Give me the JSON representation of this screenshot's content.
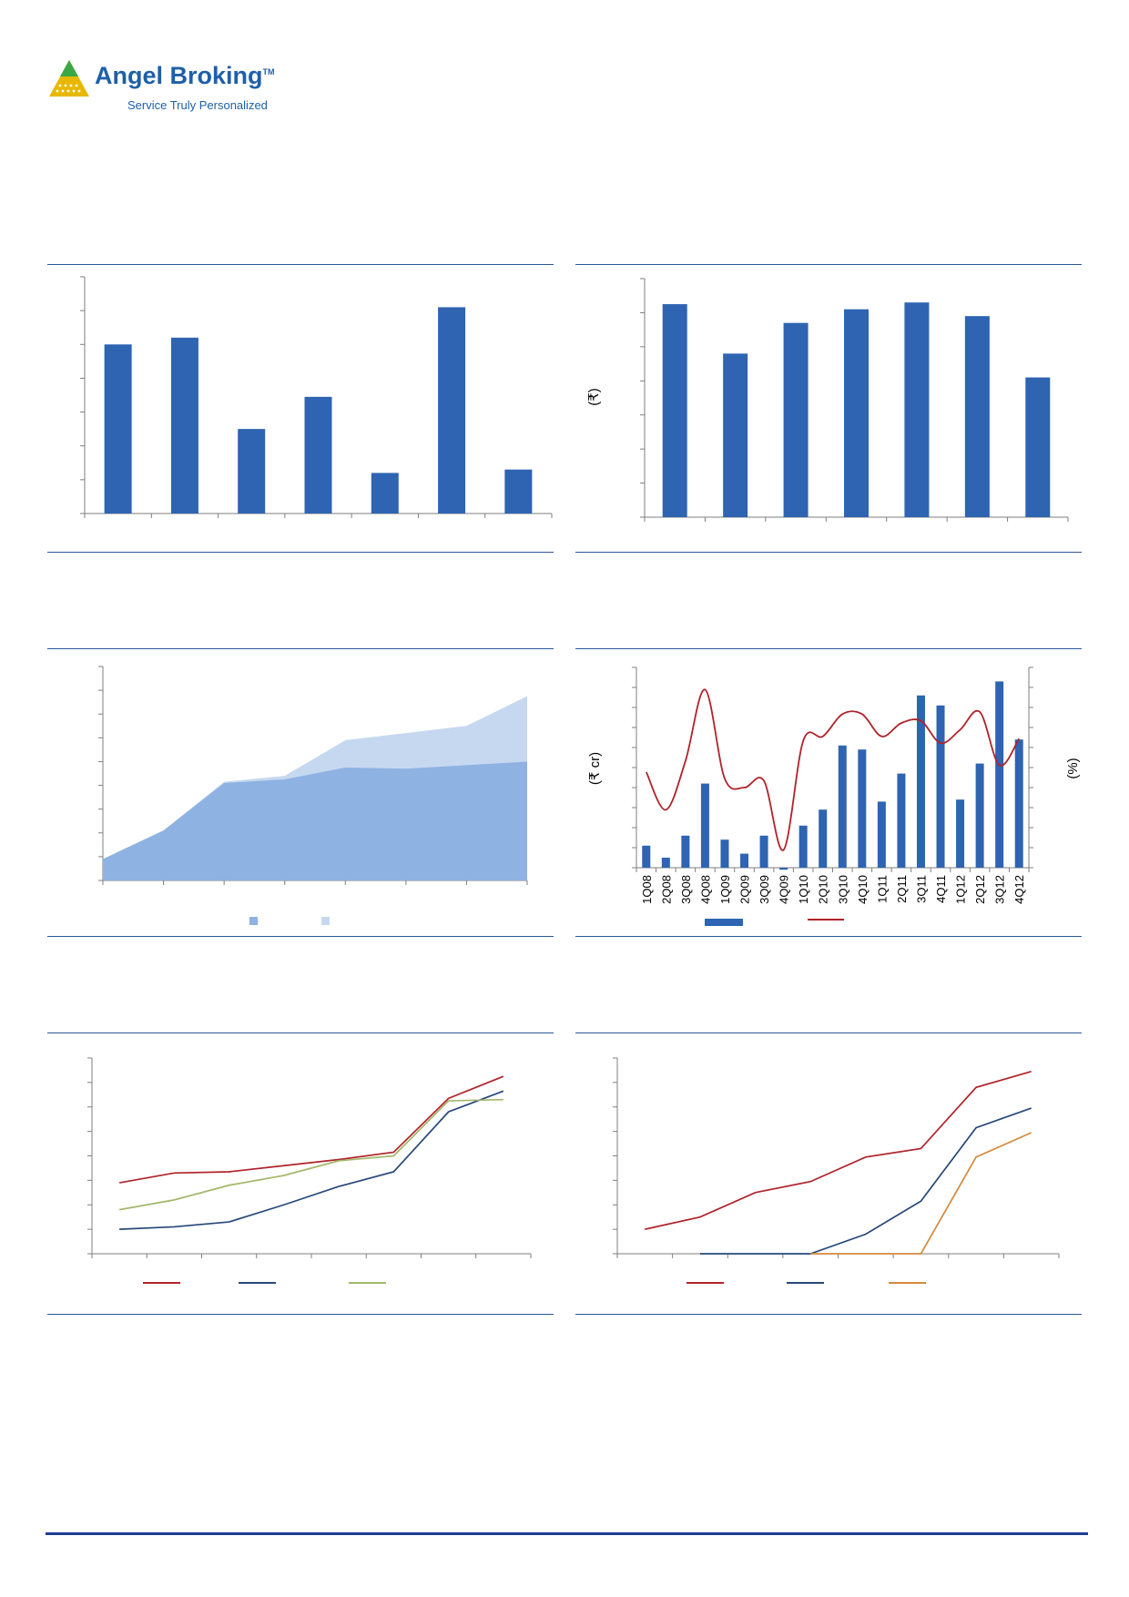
{
  "brand": {
    "name": "Angel Broking",
    "trademark": "TM",
    "tagline": "Service Truly Personalized",
    "colors": {
      "logo_blue": "#1f5fa8",
      "logo_green": "#3aa847",
      "logo_yellow": "#e8b800"
    }
  },
  "colors": {
    "bar": "#2e64b1",
    "area_dark": "#8eb2e2",
    "area_light": "#c6d8f0",
    "red": "#b0232a",
    "navy": "#27487a",
    "olive": "#a3b86b",
    "orange": "#d58a3e",
    "rule": "#2b5797"
  },
  "chart_data": [
    {
      "id": "c1",
      "type": "bar",
      "values": [
        5,
        5.2,
        2.5,
        3.45,
        1.2,
        6.1,
        1.3
      ],
      "ylim": [
        0,
        7
      ]
    },
    {
      "id": "c2",
      "type": "bar",
      "ylabel": "(₹)",
      "values": [
        6.25,
        4.8,
        5.7,
        6.1,
        6.3,
        5.9,
        4.1
      ],
      "ylim": [
        0,
        7
      ]
    },
    {
      "id": "c3",
      "type": "area",
      "x": [
        0,
        1,
        2,
        3,
        4,
        5,
        6,
        7
      ],
      "series": [
        {
          "values": [
            0.9,
            2.1,
            4.1,
            4.25,
            4.75,
            4.7,
            4.85,
            5.0
          ]
        },
        {
          "values": [
            0.9,
            2.1,
            4.15,
            4.4,
            5.9,
            6.2,
            6.5,
            7.75
          ]
        }
      ],
      "ylim": [
        0,
        9
      ],
      "legend": "bottom"
    },
    {
      "id": "c4",
      "type": "bar",
      "categories": [
        "1Q08",
        "2Q08",
        "3Q08",
        "4Q08",
        "1Q09",
        "2Q09",
        "3Q09",
        "4Q09",
        "1Q10",
        "2Q10",
        "3Q10",
        "4Q10",
        "1Q11",
        "2Q11",
        "3Q11",
        "4Q11",
        "1Q12",
        "2Q12",
        "3Q12",
        "4Q12"
      ],
      "ylabel": "(₹ cr)",
      "y2label": "(%)",
      "values": [
        1.1,
        0.5,
        1.6,
        4.2,
        1.4,
        0.7,
        1.6,
        -0.1,
        2.1,
        2.9,
        6.1,
        5.9,
        3.3,
        4.7,
        8.6,
        8.1,
        3.4,
        5.2,
        9.3,
        6.4
      ],
      "line_values": [
        4.3,
        2.6,
        4.8,
        8.0,
        4.0,
        3.6,
        3.9,
        0.8,
        5.7,
        5.9,
        6.9,
        6.9,
        5.9,
        6.5,
        6.6,
        5.6,
        6.2,
        7.0,
        4.6,
        5.8
      ],
      "ylim": [
        0,
        10
      ],
      "y2lim": [
        0,
        9
      ],
      "legend": "bottom"
    },
    {
      "id": "c5",
      "type": "line",
      "x": [
        0,
        1,
        2,
        3,
        4,
        5,
        6,
        7
      ],
      "series": [
        {
          "color": "red",
          "values": [
            2.9,
            3.3,
            3.35,
            3.6,
            3.85,
            4.15,
            6.35,
            7.25
          ]
        },
        {
          "color": "navy",
          "values": [
            1.0,
            1.1,
            1.3,
            2.0,
            2.75,
            3.35,
            5.8,
            6.65
          ]
        },
        {
          "color": "olive",
          "values": [
            1.8,
            2.2,
            2.8,
            3.2,
            3.8,
            4.0,
            6.25,
            6.3
          ]
        }
      ],
      "ylim": [
        0,
        8
      ],
      "legend": "bottom"
    },
    {
      "id": "c6",
      "type": "line",
      "x": [
        0,
        1,
        2,
        3,
        4,
        5,
        6,
        7
      ],
      "series": [
        {
          "color": "red",
          "values": [
            1.0,
            1.5,
            2.5,
            2.95,
            3.95,
            4.3,
            6.8,
            7.45
          ]
        },
        {
          "color": "navy",
          "values": [
            null,
            0,
            0,
            0,
            0.8,
            2.15,
            5.15,
            5.95
          ]
        },
        {
          "color": "orange",
          "values": [
            null,
            null,
            null,
            0,
            0,
            0,
            3.95,
            4.95
          ]
        }
      ],
      "ylim": [
        0,
        8
      ],
      "legend": "bottom"
    }
  ]
}
